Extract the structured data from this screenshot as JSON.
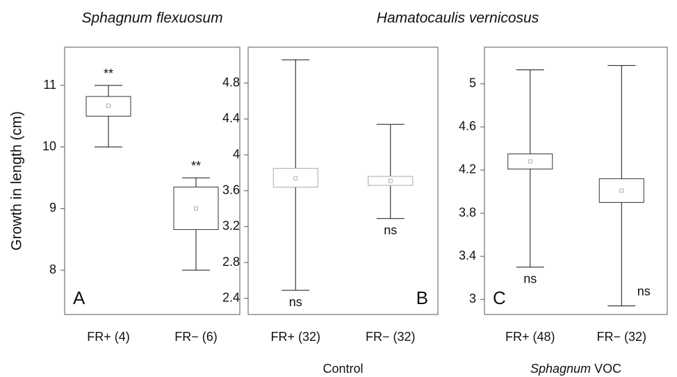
{
  "chart_data": [
    {
      "type": "box",
      "title": "Sphagnum flexuosum",
      "ylabel": "Growth in length (cm)",
      "panel_label": "A",
      "panel_label_corner": "bottom-left",
      "box_color": "#333333",
      "ylim": [
        7.28,
        11.62
      ],
      "yticks": [
        8,
        9,
        10,
        11
      ],
      "series": [
        {
          "name": "FR+ (4)",
          "min": 10.0,
          "q1": 10.5,
          "mean": 10.67,
          "q3": 10.82,
          "max": 11.0,
          "annotation": "**",
          "annotation_position": "above"
        },
        {
          "name": "FR− (6)",
          "min": 8.0,
          "q1": 8.66,
          "mean": 9.0,
          "q3": 9.35,
          "max": 9.5,
          "annotation": "**",
          "annotation_position": "above"
        }
      ]
    },
    {
      "type": "box",
      "title": "Hamatocaulis vernicosus",
      "title_span": 2,
      "group_label": [
        {
          "text": "Control",
          "italic": false
        }
      ],
      "panel_label": "B",
      "panel_label_corner": "bottom-right",
      "box_color": "#aaaaaa",
      "ylim": [
        2.22,
        5.2
      ],
      "yticks": [
        2.4,
        2.8,
        3.2,
        3.6,
        4.0,
        4.4,
        4.8
      ],
      "series": [
        {
          "name": "FR+ (32)",
          "min": 2.49,
          "q1": 3.64,
          "mean": 3.74,
          "q3": 3.85,
          "max": 5.06,
          "annotation": "ns",
          "annotation_position": "below"
        },
        {
          "name": "FR− (32)",
          "min": 3.29,
          "q1": 3.66,
          "mean": 3.71,
          "q3": 3.76,
          "max": 4.34,
          "annotation": "ns",
          "annotation_position": "below"
        }
      ]
    },
    {
      "type": "box",
      "group_label": [
        {
          "text": "Sphagnum",
          "italic": true
        },
        {
          "text": "VOC",
          "italic": false
        }
      ],
      "panel_label": "C",
      "panel_label_corner": "bottom-left",
      "box_color": "#333333",
      "ylim": [
        2.86,
        5.34
      ],
      "yticks": [
        3.0,
        3.4,
        3.8,
        4.2,
        4.6,
        5.0
      ],
      "series": [
        {
          "name": "FR+ (48)",
          "min": 3.3,
          "q1": 4.21,
          "mean": 4.28,
          "q3": 4.35,
          "max": 5.13,
          "annotation": "ns",
          "annotation_position": "below"
        },
        {
          "name": "FR− (32)",
          "min": 2.94,
          "q1": 3.9,
          "mean": 4.01,
          "q3": 4.12,
          "max": 5.17,
          "annotation": "ns",
          "annotation_position": "below-right"
        }
      ]
    }
  ]
}
